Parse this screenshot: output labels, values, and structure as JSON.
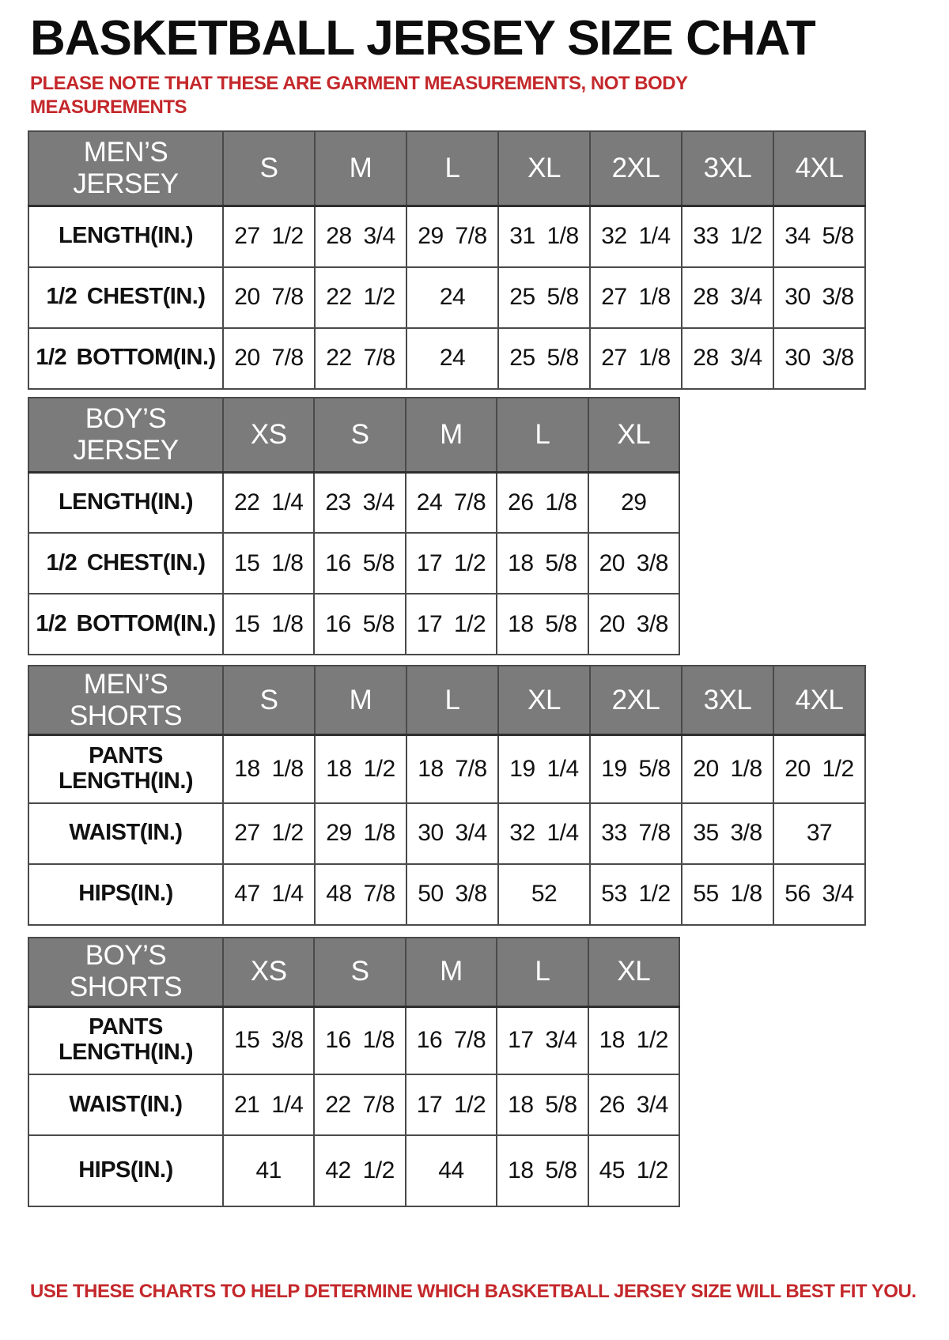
{
  "title": "BASKETBALL JERSEY SIZE CHAT",
  "note": "PLEASE NOTE THAT THESE ARE GARMENT MEASUREMENTS, NOT BODY MEASUREMENTS",
  "footer": "USE THESE CHARTS TO HELP DETERMINE WHICH BASKETBALL JERSEY SIZE WILL BEST FIT YOU.",
  "colors": {
    "header_bg": "#7b7b7b",
    "header_text": "#ffffff",
    "accent_red": "#c4282b",
    "border": "#4a4a4a",
    "text": "#111111"
  },
  "tables": [
    {
      "name": "mens_jersey",
      "columns": [
        "MEN’S JERSEY",
        "S",
        "M",
        "L",
        "XL",
        "2XL",
        "3XL",
        "4XL"
      ],
      "rows": [
        [
          "LENGTH(IN.)",
          "27 1/2",
          "28 3/4",
          "29 7/8",
          "31 1/8",
          "32 1/4",
          "33 1/2",
          "34 5/8"
        ],
        [
          "1/2 CHEST(IN.)",
          "20 7/8",
          "22 1/2",
          "24",
          "25 5/8",
          "27 1/8",
          "28 3/4",
          "30 3/8"
        ],
        [
          "1/2 BOTTOM(IN.)",
          "20 7/8",
          "22 7/8",
          "24",
          "25 5/8",
          "27 1/8",
          "28 3/4",
          "30 3/8"
        ]
      ]
    },
    {
      "name": "boys_jersey",
      "columns": [
        "BOY’S JERSEY",
        "XS",
        "S",
        "M",
        "L",
        "XL"
      ],
      "rows": [
        [
          "LENGTH(IN.)",
          "22 1/4",
          "23 3/4",
          "24 7/8",
          "26 1/8",
          "29"
        ],
        [
          "1/2 CHEST(IN.)",
          "15 1/8",
          "16 5/8",
          "17 1/2",
          "18 5/8",
          "20 3/8"
        ],
        [
          "1/2 BOTTOM(IN.)",
          "15 1/8",
          "16 5/8",
          "17 1/2",
          "18 5/8",
          "20 3/8"
        ]
      ]
    },
    {
      "name": "mens_shorts",
      "columns": [
        "MEN’S SHORTS",
        "S",
        "M",
        "L",
        "XL",
        "2XL",
        "3XL",
        "4XL"
      ],
      "rows": [
        [
          "PANTS LENGTH(IN.)",
          "18 1/8",
          "18 1/2",
          "18 7/8",
          "19 1/4",
          "19 5/8",
          "20 1/8",
          "20 1/2"
        ],
        [
          "WAIST(IN.)",
          "27 1/2",
          "29 1/8",
          "30 3/4",
          "32 1/4",
          "33 7/8",
          "35 3/8",
          "37"
        ],
        [
          "HIPS(IN.)",
          "47 1/4",
          "48 7/8",
          "50 3/8",
          "52",
          "53 1/2",
          "55 1/8",
          "56 3/4"
        ]
      ]
    },
    {
      "name": "boys_shorts",
      "columns": [
        "BOY’S SHORTS",
        "XS",
        "S",
        "M",
        "L",
        "XL"
      ],
      "rows": [
        [
          "PANTS LENGTH(IN.)",
          "15 3/8",
          "16 1/8",
          "16 7/8",
          "17 3/4",
          "18 1/2"
        ],
        [
          "WAIST(IN.)",
          "21 1/4",
          "22 7/8",
          "17 1/2",
          "18 5/8",
          "26 3/4"
        ],
        [
          "HIPS(IN.)",
          "41",
          "42 1/2",
          "44",
          "18 5/8",
          "45 1/2"
        ]
      ]
    }
  ]
}
